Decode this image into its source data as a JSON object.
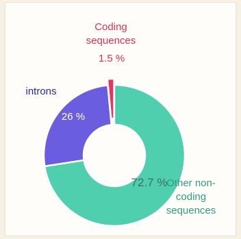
{
  "chart_data": {
    "type": "donut",
    "categories": [
      "Other non-coding sequences",
      "introns",
      "Coding sequences"
    ],
    "values": [
      72.7,
      26,
      1.5
    ],
    "value_labels": [
      "72.7 %",
      "26 %",
      "1.5 %"
    ],
    "colors": [
      "#4fcfae",
      "#6a5ddf",
      "#e8355f"
    ]
  }
}
